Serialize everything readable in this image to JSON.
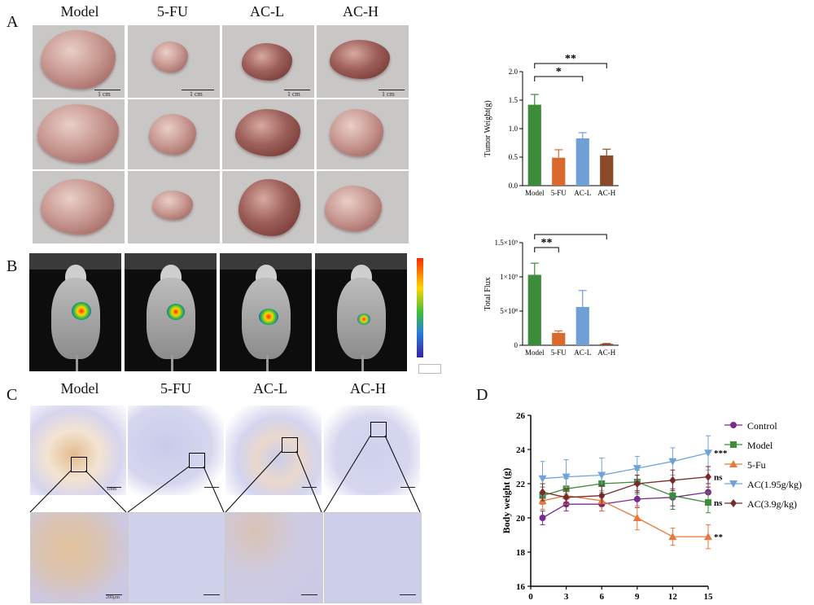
{
  "panels": {
    "A": {
      "letter": "A",
      "groups": [
        "Model",
        "5-FU",
        "AC-L",
        "AC-H"
      ],
      "scale_label": "1 cm"
    },
    "B": {
      "letter": "B"
    },
    "C": {
      "letter": "C",
      "groups": [
        "Model",
        "5-FU",
        "AC-L",
        "AC-H"
      ],
      "scale_top": "1mm",
      "scale_bottom": "200μm"
    },
    "D": {
      "letter": "D"
    }
  },
  "chart_data": [
    {
      "id": "tumor_weight",
      "type": "bar",
      "categories": [
        "Model",
        "5-FU",
        "AC-L",
        "AC-H"
      ],
      "values": [
        1.42,
        0.49,
        0.83,
        0.53
      ],
      "errors": [
        0.18,
        0.14,
        0.1,
        0.11
      ],
      "colors": [
        "#3c8c3c",
        "#d9692c",
        "#6f9fd3",
        "#8a4a2a"
      ],
      "xlabel": "",
      "ylabel": "Tumor Weight(g)",
      "ylim": [
        0,
        2.0
      ],
      "yticks": [
        "0.0",
        "0.5",
        "1.0",
        "1.5",
        "2.0"
      ],
      "significance": [
        {
          "from": "Model",
          "to": "AC-L",
          "label": "*"
        },
        {
          "from": "Model",
          "to": "AC-H",
          "label": "**"
        }
      ]
    },
    {
      "id": "total_flux",
      "type": "bar",
      "categories": [
        "Model",
        "5-FU",
        "AC-L",
        "AC-H"
      ],
      "values": [
        1030000000.0,
        180000000.0,
        560000000.0,
        20000000.0
      ],
      "errors": [
        170000000.0,
        30000000.0,
        240000000.0,
        5000000.0
      ],
      "colors": [
        "#3c8c3c",
        "#d9692c",
        "#6f9fd3",
        "#8a4a2a"
      ],
      "xlabel": "",
      "ylabel": "Total Flux",
      "ylim": [
        0,
        1500000000.0
      ],
      "yticks": [
        "0",
        "5×10⁸",
        "1×10⁹",
        "1.5×10⁹"
      ],
      "significance": [
        {
          "from": "Model",
          "to": "5-FU",
          "label": "**"
        },
        {
          "from": "Model",
          "to": "AC-H",
          "label": "***"
        }
      ]
    },
    {
      "id": "body_weight",
      "type": "line",
      "x": [
        1,
        3,
        6,
        9,
        12,
        15
      ],
      "xticks": [
        "0",
        "3",
        "6",
        "9",
        "12",
        "15"
      ],
      "xlabel": "Time (days)",
      "ylabel": "Body weight (g)",
      "ylim": [
        16,
        26
      ],
      "xlim": [
        0,
        15
      ],
      "yticks": [
        "16",
        "18",
        "20",
        "22",
        "24",
        "26"
      ],
      "series": [
        {
          "name": "Control",
          "color": "#7b2b8f",
          "marker": "circle",
          "values": [
            20.0,
            20.8,
            20.8,
            21.1,
            21.2,
            21.5
          ],
          "errors": [
            0.4,
            0.4,
            0.4,
            0.5,
            0.5,
            0.5
          ],
          "sig": ""
        },
        {
          "name": "Model",
          "color": "#3c8c3c",
          "marker": "square",
          "values": [
            21.3,
            21.7,
            22.0,
            22.1,
            21.3,
            20.9
          ],
          "errors": [
            0.5,
            0.6,
            0.6,
            0.7,
            0.8,
            0.6
          ],
          "sig": "ns"
        },
        {
          "name": "5-Fu",
          "color": "#e8793a",
          "marker": "triangle-up",
          "values": [
            21.0,
            21.3,
            21.0,
            20.0,
            18.9,
            18.9
          ],
          "errors": [
            0.5,
            0.5,
            0.6,
            0.7,
            0.5,
            0.7
          ],
          "sig": "**"
        },
        {
          "name": "AC(1.95g/kg)",
          "color": "#6fa3d8",
          "marker": "triangle-down",
          "values": [
            22.3,
            22.4,
            22.5,
            22.9,
            23.3,
            23.8
          ],
          "errors": [
            1.0,
            1.0,
            1.0,
            0.7,
            0.8,
            1.0
          ],
          "sig": "***"
        },
        {
          "name": "AC(3.9g/kg)",
          "color": "#7a2a2a",
          "marker": "diamond",
          "values": [
            21.5,
            21.2,
            21.3,
            22.0,
            22.2,
            22.4
          ],
          "errors": [
            0.5,
            0.5,
            0.6,
            0.5,
            0.6,
            0.6
          ],
          "sig": "ns"
        }
      ]
    }
  ]
}
